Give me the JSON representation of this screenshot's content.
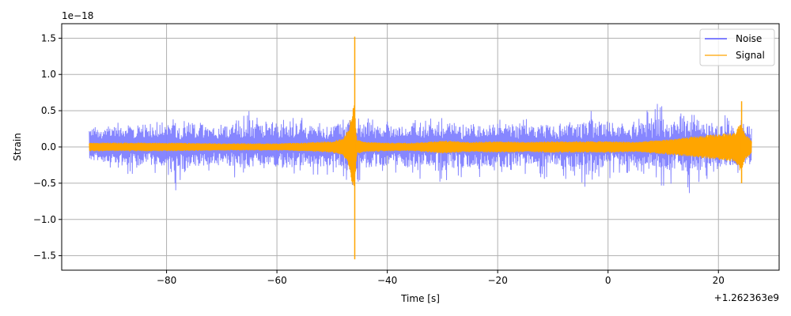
{
  "chart_data": {
    "type": "line",
    "title": "",
    "xlabel": "Time [s]",
    "ylabel": "Strain",
    "x_offset_label": "+1.262363e9",
    "y_scale_label": "1e−18",
    "xlim": [
      -99,
      31
    ],
    "ylim": [
      -1.7,
      1.7
    ],
    "x_ticks": [
      -80,
      -60,
      -40,
      -20,
      0,
      20
    ],
    "x_tick_labels": [
      "−80",
      "−60",
      "−40",
      "−20",
      "0",
      "20"
    ],
    "y_ticks": [
      1.5,
      1.0,
      0.5,
      0.0,
      -0.5,
      -1.0,
      -1.5
    ],
    "y_tick_labels": [
      "1.5",
      "1.0",
      "0.5",
      "0.0",
      "−0.5",
      "−1.0",
      "−1.5"
    ],
    "grid": true,
    "legend_position": "top-right",
    "series": [
      {
        "name": "Noise",
        "color": "#7f7fff",
        "x_range": [
          -94,
          26
        ],
        "x": [
          -94,
          -90,
          -86,
          -83,
          -80,
          -78,
          -76,
          -73,
          -70,
          -67,
          -65,
          -62,
          -59,
          -56,
          -53,
          -50,
          -47,
          -45,
          -42,
          -39,
          -36,
          -33,
          -30,
          -27,
          -24,
          -21,
          -18,
          -15,
          -12,
          -9,
          -6,
          -3,
          0,
          3,
          6,
          9,
          12,
          15,
          18,
          21,
          24,
          26
        ],
        "upper": [
          0.3,
          0.34,
          0.36,
          0.38,
          0.33,
          0.42,
          0.45,
          0.4,
          0.36,
          0.38,
          0.5,
          0.4,
          0.4,
          0.42,
          0.36,
          0.4,
          0.55,
          0.42,
          0.38,
          0.36,
          0.42,
          0.44,
          0.4,
          0.45,
          0.42,
          0.4,
          0.42,
          0.4,
          0.38,
          0.4,
          0.4,
          0.52,
          0.45,
          0.4,
          0.44,
          0.62,
          0.5,
          0.55,
          0.44,
          0.46,
          0.38,
          0.36
        ],
        "lower": [
          -0.25,
          -0.3,
          -0.4,
          -0.42,
          -0.4,
          -0.7,
          -0.45,
          -0.4,
          -0.38,
          -0.45,
          -0.44,
          -0.4,
          -0.48,
          -0.45,
          -0.42,
          -0.4,
          -0.55,
          -0.5,
          -0.42,
          -0.4,
          -0.44,
          -0.46,
          -0.55,
          -0.45,
          -0.42,
          -0.44,
          -0.45,
          -0.4,
          -0.45,
          -0.42,
          -0.52,
          -0.58,
          -0.45,
          -0.42,
          -0.45,
          -0.6,
          -0.5,
          -0.65,
          -0.44,
          -0.42,
          -0.4,
          -0.35
        ]
      },
      {
        "name": "Signal",
        "color": "#ffa500",
        "x_range": [
          -94,
          26
        ],
        "envelope_x": [
          -94,
          -80,
          -70,
          -60,
          -55,
          -50,
          -48,
          -47,
          -46.3,
          -46,
          -45.5,
          -44,
          -40,
          -35,
          -30,
          -25,
          -20,
          -15,
          -10,
          -5,
          0,
          5,
          10,
          15,
          20,
          23,
          24,
          25,
          26
        ],
        "envelope_y": [
          0.06,
          0.06,
          0.05,
          0.05,
          0.06,
          0.08,
          0.12,
          0.25,
          0.55,
          0.6,
          0.1,
          0.07,
          0.06,
          0.06,
          0.09,
          0.07,
          0.08,
          0.07,
          0.08,
          0.08,
          0.08,
          0.07,
          0.1,
          0.14,
          0.18,
          0.2,
          0.35,
          0.16,
          0.1
        ],
        "spikes": [
          {
            "x": -45.9,
            "y_max": 1.52,
            "y_min": -1.55
          },
          {
            "x": 24.2,
            "y_max": 0.63,
            "y_min": -0.5
          }
        ]
      }
    ]
  }
}
